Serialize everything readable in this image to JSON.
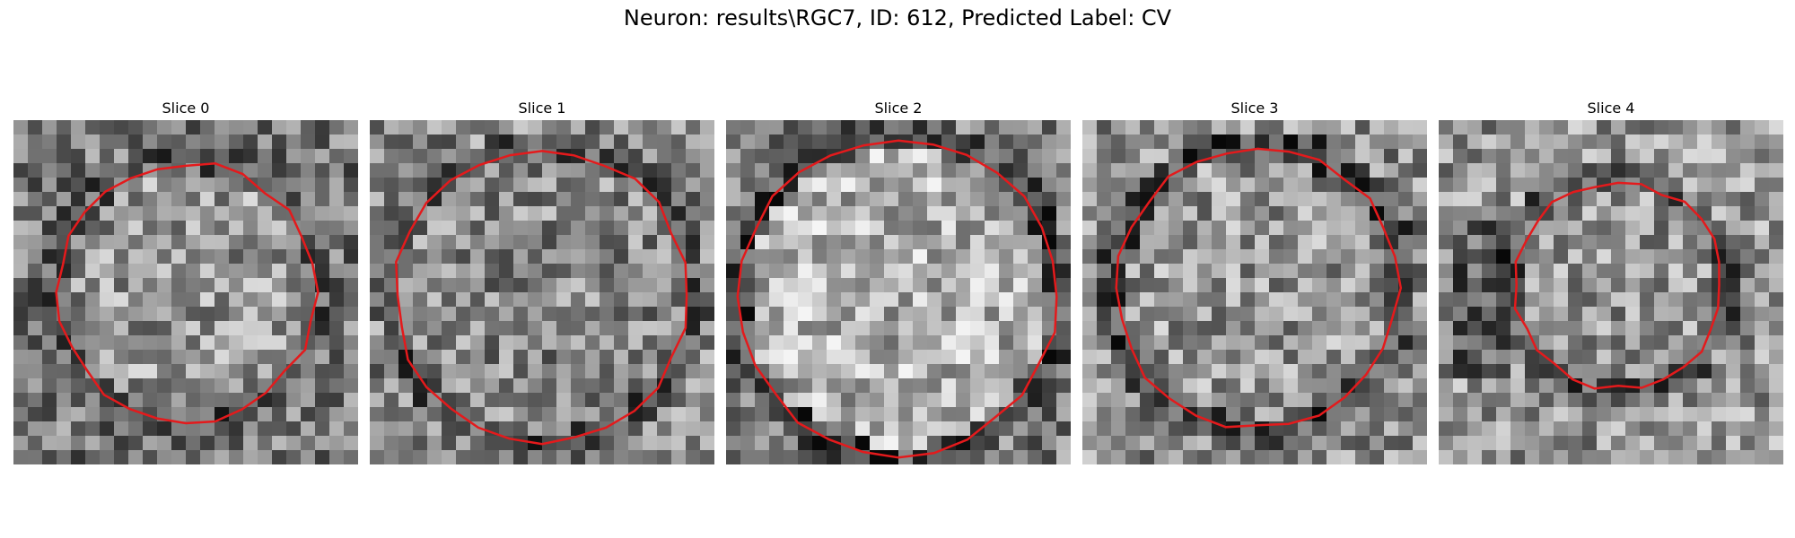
{
  "figure": {
    "title": "Neuron: results\\RGC7, ID: 612, Predicted Label: CV"
  },
  "slices": [
    {
      "title": "Slice 0"
    },
    {
      "title": "Slice 1"
    },
    {
      "title": "Slice 2"
    },
    {
      "title": "Slice 3"
    },
    {
      "title": "Slice 4"
    }
  ],
  "colors": {
    "contour": "#e41a1c",
    "background": "#ffffff",
    "text": "#000000"
  }
}
